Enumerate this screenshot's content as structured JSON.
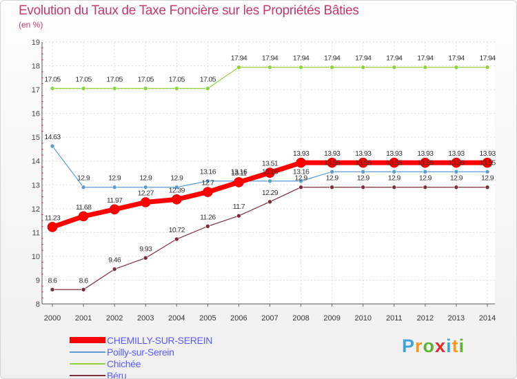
{
  "title": "Evolution du Taux de Taxe Foncière sur les Propriétés Bâties",
  "unit": "(en %)",
  "brand": {
    "letters": [
      "P",
      "r",
      "o",
      "x",
      "i",
      "t",
      "i"
    ],
    "colors": [
      "#3da7dc",
      "#f29a1e",
      "#5cb531",
      "#e5292f",
      "#3da7dc",
      "#f29a1e",
      "#5cb531"
    ]
  },
  "chart_data": {
    "type": "line",
    "title": "Evolution du Taux de Taxe Foncière sur les Propriétés Bâties",
    "ylabel": "(en %)",
    "xlabel": "",
    "x": [
      "2000",
      "2001",
      "2002",
      "2003",
      "2004",
      "2005",
      "2006",
      "2007",
      "2008",
      "2009",
      "2010",
      "2011",
      "2012",
      "2013",
      "2014"
    ],
    "ylim": [
      8,
      19
    ],
    "yticks": [
      "8",
      "9",
      "10",
      "11",
      "12",
      "13",
      "14",
      "15",
      "16",
      "17",
      "18",
      "19"
    ],
    "grid": true,
    "legend_position": "bottom-left",
    "series": [
      {
        "name": "Chichée",
        "color": "#8fd43d",
        "width": 1.2,
        "marker": 3,
        "values": [
          17.05,
          17.05,
          17.05,
          17.05,
          17.05,
          17.05,
          17.94,
          17.94,
          17.94,
          17.94,
          17.94,
          17.94,
          17.94,
          17.94,
          17.94
        ],
        "labels": [
          "17.05",
          "17.05",
          "17.05",
          "17.05",
          "17.05",
          "17.05",
          "17.94",
          "17.94",
          "17.94",
          "17.94",
          "17.94",
          "17.94",
          "17.94",
          "17.94",
          "17.94"
        ]
      },
      {
        "name": "Poilly-sur-Serein",
        "color": "#5b9bd5",
        "width": 1.2,
        "marker": 3,
        "values": [
          14.63,
          12.9,
          12.9,
          12.9,
          12.9,
          13.16,
          13.16,
          13.16,
          13.16,
          13.55,
          13.55,
          13.55,
          13.55,
          13.55,
          13.55
        ],
        "labels": [
          "14.63",
          "12.9",
          "12.9",
          "12.9",
          "12.9",
          "13.16",
          "13.16",
          "13.16",
          "13.16",
          "13.55",
          "13.55",
          "13.55",
          "13.55",
          "13.55",
          "13.55"
        ]
      },
      {
        "name": "Béru",
        "color": "#7b2d3a",
        "width": 1.2,
        "marker": 3,
        "values": [
          8.6,
          8.6,
          9.46,
          9.93,
          10.72,
          11.26,
          11.7,
          12.29,
          12.9,
          12.9,
          12.9,
          12.9,
          12.9,
          12.9,
          12.9
        ],
        "labels": [
          "8.6",
          "8.6",
          "9.46",
          "9.93",
          "10.72",
          "11.26",
          "11.7",
          "12.29",
          "12.9",
          "12.9",
          "12.9",
          "12.9",
          "12.9",
          "12.9",
          "12.9"
        ]
      },
      {
        "name": "CHEMILLY-SUR-SEREIN",
        "color": "#ff0000",
        "width": 7,
        "marker": 7,
        "values": [
          11.23,
          11.68,
          11.97,
          12.27,
          12.39,
          12.7,
          13.11,
          13.51,
          13.93,
          13.93,
          13.93,
          13.93,
          13.93,
          13.93,
          13.93
        ],
        "labels": [
          "11.23",
          "11.68",
          "11.97",
          "12.27",
          "12.39",
          "12.7",
          "13.11",
          "13.51",
          "13.93",
          "13.93",
          "13.93",
          "13.93",
          "13.93",
          "13.93",
          "13.93"
        ]
      }
    ],
    "legend": [
      {
        "name": "CHEMILLY-SUR-SEREIN",
        "color": "#ff0000",
        "thickness": 9
      },
      {
        "name": "Poilly-sur-Serein",
        "color": "#5b9bd5",
        "thickness": 2
      },
      {
        "name": "Chichée",
        "color": "#8fd43d",
        "thickness": 2
      },
      {
        "name": "Béru",
        "color": "#7b2d3a",
        "thickness": 2
      }
    ]
  }
}
